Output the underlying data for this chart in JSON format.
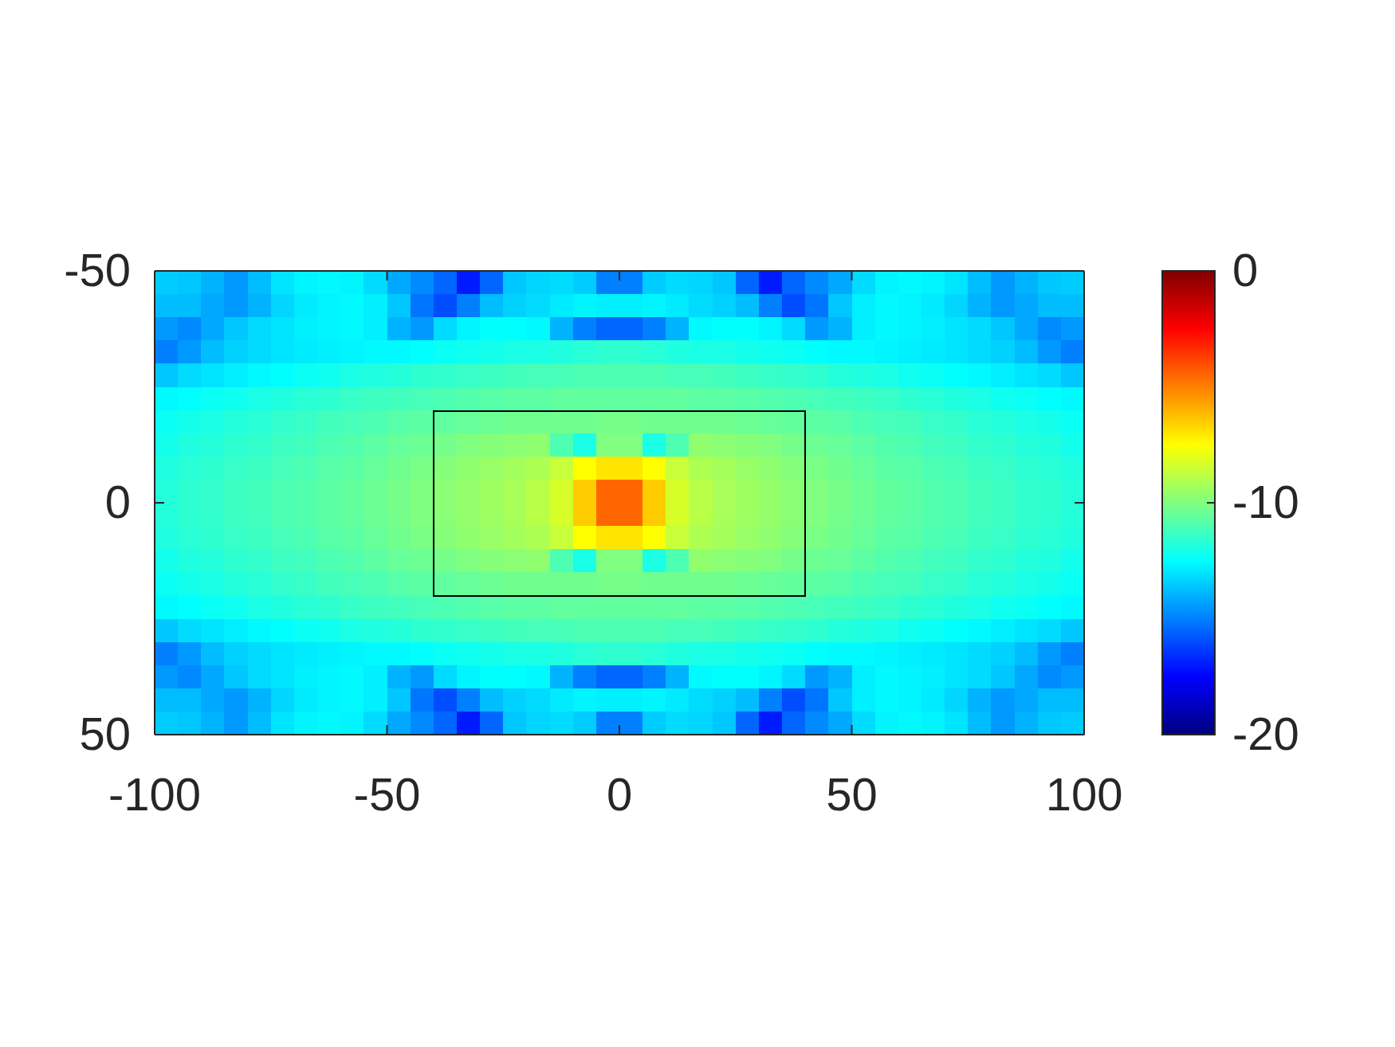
{
  "chart_data": {
    "type": "heatmap",
    "xlim": [
      -100,
      100
    ],
    "xticks": [
      -100,
      -50,
      0,
      50,
      100
    ],
    "ylim": [
      50,
      -50
    ],
    "yticks": [
      -50,
      0,
      50
    ],
    "clim": [
      -20,
      0
    ],
    "cticks": [
      -20,
      -10,
      0
    ],
    "cells": [
      [
        -13.5,
        -13.6,
        -14,
        -14.5,
        -13.8,
        -13,
        -12.7,
        -12.6,
        -12.7,
        -13.2,
        -14.2,
        -14.8,
        -15.5,
        -17,
        -15.5,
        -13.6,
        -13.3,
        -13.2,
        -13.5,
        -15,
        -15,
        -13.5,
        -13.2,
        -13.3,
        -13.6,
        -15.5,
        -17,
        -15.5,
        -14.8,
        -14.2,
        -13.2,
        -12.7,
        -12.6,
        -12.7,
        -13,
        -13.8,
        -14.5,
        -14,
        -13.6,
        -13.5
      ],
      [
        -13.8,
        -13.8,
        -14.2,
        -14.5,
        -14,
        -13.3,
        -12.9,
        -12.7,
        -12.6,
        -12.8,
        -13.6,
        -15.2,
        -16,
        -15,
        -13.8,
        -13.4,
        -13.2,
        -12.9,
        -12.7,
        -12.8,
        -12.8,
        -12.7,
        -12.9,
        -13.2,
        -13.4,
        -13.8,
        -15,
        -16,
        -15.2,
        -13.6,
        -12.8,
        -12.6,
        -12.7,
        -12.9,
        -13.3,
        -14,
        -14.5,
        -14.2,
        -13.8,
        -13.8
      ],
      [
        -14.5,
        -14.8,
        -14.2,
        -13.6,
        -13.2,
        -13,
        -12.8,
        -12.7,
        -12.6,
        -12.8,
        -14,
        -14.5,
        -13.2,
        -12.7,
        -12.5,
        -12.5,
        -12.6,
        -14,
        -15,
        -15.5,
        -15.5,
        -15,
        -14,
        -12.6,
        -12.5,
        -12.5,
        -12.7,
        -13.2,
        -14.5,
        -14,
        -12.8,
        -12.6,
        -12.7,
        -12.8,
        -13,
        -13.2,
        -13.6,
        -14.2,
        -14.8,
        -14.5
      ],
      [
        -15,
        -14.5,
        -13.8,
        -13.4,
        -13.2,
        -13,
        -12.9,
        -12.8,
        -12.7,
        -12.6,
        -12.6,
        -12.5,
        -12.3,
        -12.2,
        -12.1,
        -12,
        -12,
        -11.9,
        -11.7,
        -11.6,
        -11.6,
        -11.7,
        -11.9,
        -12,
        -12,
        -12.1,
        -12.2,
        -12.3,
        -12.5,
        -12.6,
        -12.6,
        -12.7,
        -12.8,
        -12.9,
        -13,
        -13.2,
        -13.4,
        -13.8,
        -14.5,
        -15
      ],
      [
        -13.6,
        -13.2,
        -13,
        -12.8,
        -12.6,
        -12.5,
        -12.3,
        -12.2,
        -12,
        -11.9,
        -11.8,
        -11.6,
        -11.5,
        -11.4,
        -11.3,
        -11.2,
        -11.1,
        -11.1,
        -11,
        -11,
        -11,
        -11,
        -11.1,
        -11.1,
        -11.2,
        -11.3,
        -11.4,
        -11.5,
        -11.6,
        -11.8,
        -11.9,
        -12,
        -12.2,
        -12.3,
        -12.5,
        -12.6,
        -12.8,
        -13,
        -13.2,
        -13.6
      ],
      [
        -12.6,
        -12.5,
        -12.3,
        -12.2,
        -12,
        -11.9,
        -11.7,
        -11.6,
        -11.4,
        -11.3,
        -11.2,
        -11.1,
        -11,
        -10.9,
        -10.8,
        -10.7,
        -10.7,
        -10.6,
        -10.6,
        -10.6,
        -10.6,
        -10.6,
        -10.6,
        -10.7,
        -10.7,
        -10.8,
        -10.9,
        -11,
        -11.1,
        -11.2,
        -11.3,
        -11.4,
        -11.6,
        -11.7,
        -11.9,
        -12,
        -12.2,
        -12.3,
        -12.5,
        -12.6
      ],
      [
        -12.3,
        -12.1,
        -12,
        -11.8,
        -11.7,
        -11.5,
        -11.4,
        -11.2,
        -11.1,
        -11,
        -10.8,
        -10.7,
        -10.6,
        -10.5,
        -10.4,
        -10.3,
        -10.3,
        -10.3,
        -10.3,
        -10.2,
        -10.2,
        -10.3,
        -10.3,
        -10.3,
        -10.3,
        -10.4,
        -10.5,
        -10.6,
        -10.7,
        -10.8,
        -11,
        -11.1,
        -11.2,
        -11.4,
        -11.5,
        -11.7,
        -11.8,
        -12,
        -12.1,
        -12.3
      ],
      [
        -12.1,
        -11.9,
        -11.8,
        -11.6,
        -11.5,
        -11.3,
        -11.2,
        -11,
        -10.9,
        -10.7,
        -10.5,
        -10.4,
        -10.2,
        -10,
        -9.9,
        -9.8,
        -9.7,
        -11,
        -12,
        -10,
        -10,
        -12,
        -11,
        -9.7,
        -9.8,
        -9.9,
        -10,
        -10.2,
        -10.4,
        -10.5,
        -10.7,
        -10.9,
        -11,
        -11.2,
        -11.3,
        -11.5,
        -11.6,
        -11.8,
        -11.9,
        -12.1
      ],
      [
        -11.9,
        -11.7,
        -11.6,
        -11.4,
        -11.3,
        -11.1,
        -11,
        -10.8,
        -10.7,
        -10.5,
        -10.3,
        -10.1,
        -9.9,
        -9.7,
        -9.5,
        -9.3,
        -9.1,
        -8.6,
        -7.5,
        -7,
        -7,
        -7.5,
        -8.6,
        -9.1,
        -9.3,
        -9.5,
        -9.7,
        -9.9,
        -10.1,
        -10.3,
        -10.5,
        -10.7,
        -10.8,
        -11,
        -11.1,
        -11.3,
        -11.4,
        -11.6,
        -11.7,
        -11.9
      ],
      [
        -11.8,
        -11.6,
        -11.5,
        -11.3,
        -11.2,
        -11,
        -10.9,
        -10.7,
        -10.6,
        -10.4,
        -10.2,
        -10,
        -9.8,
        -9.6,
        -9.4,
        -9.2,
        -8.9,
        -8.3,
        -6.5,
        -4.5,
        -4.5,
        -6.5,
        -8.3,
        -8.9,
        -9.2,
        -9.4,
        -9.6,
        -9.8,
        -10,
        -10.2,
        -10.4,
        -10.6,
        -10.7,
        -10.9,
        -11,
        -11.2,
        -11.3,
        -11.5,
        -11.6,
        -11.8
      ],
      [
        -11.8,
        -11.6,
        -11.5,
        -11.3,
        -11.2,
        -11,
        -10.9,
        -10.7,
        -10.6,
        -10.4,
        -10.2,
        -10,
        -9.8,
        -9.6,
        -9.4,
        -9.2,
        -8.9,
        -8.3,
        -6.5,
        -4.5,
        -4.5,
        -6.5,
        -8.3,
        -8.9,
        -9.2,
        -9.4,
        -9.6,
        -9.8,
        -10,
        -10.2,
        -10.4,
        -10.6,
        -10.7,
        -10.9,
        -11,
        -11.2,
        -11.3,
        -11.5,
        -11.6,
        -11.8
      ],
      [
        -11.9,
        -11.7,
        -11.6,
        -11.4,
        -11.3,
        -11.1,
        -11,
        -10.8,
        -10.7,
        -10.5,
        -10.3,
        -10.1,
        -9.9,
        -9.7,
        -9.5,
        -9.3,
        -9.1,
        -8.6,
        -7.5,
        -7,
        -7,
        -7.5,
        -8.6,
        -9.1,
        -9.3,
        -9.5,
        -9.7,
        -9.9,
        -10.1,
        -10.3,
        -10.5,
        -10.7,
        -10.8,
        -11,
        -11.1,
        -11.3,
        -11.4,
        -11.6,
        -11.7,
        -11.9
      ],
      [
        -12.1,
        -11.9,
        -11.8,
        -11.6,
        -11.5,
        -11.3,
        -11.2,
        -11,
        -10.9,
        -10.7,
        -10.5,
        -10.4,
        -10.2,
        -10,
        -9.9,
        -9.8,
        -9.7,
        -11,
        -12,
        -10,
        -10,
        -12,
        -11,
        -9.7,
        -9.8,
        -9.9,
        -10,
        -10.2,
        -10.4,
        -10.5,
        -10.7,
        -10.9,
        -11,
        -11.2,
        -11.3,
        -11.5,
        -11.6,
        -11.8,
        -11.9,
        -12.1
      ],
      [
        -12.3,
        -12.1,
        -12,
        -11.8,
        -11.7,
        -11.5,
        -11.4,
        -11.2,
        -11.1,
        -11,
        -10.8,
        -10.7,
        -10.6,
        -10.5,
        -10.4,
        -10.3,
        -10.3,
        -10.3,
        -10.3,
        -10.2,
        -10.2,
        -10.3,
        -10.3,
        -10.3,
        -10.3,
        -10.4,
        -10.5,
        -10.6,
        -10.7,
        -10.8,
        -11,
        -11.1,
        -11.2,
        -11.4,
        -11.5,
        -11.7,
        -11.8,
        -12,
        -12.1,
        -12.3
      ],
      [
        -12.6,
        -12.5,
        -12.3,
        -12.2,
        -12,
        -11.9,
        -11.7,
        -11.6,
        -11.4,
        -11.3,
        -11.2,
        -11.1,
        -11,
        -10.9,
        -10.8,
        -10.7,
        -10.7,
        -10.6,
        -10.6,
        -10.6,
        -10.6,
        -10.6,
        -10.6,
        -10.7,
        -10.7,
        -10.8,
        -10.9,
        -11,
        -11.1,
        -11.2,
        -11.3,
        -11.4,
        -11.6,
        -11.7,
        -11.9,
        -12,
        -12.2,
        -12.3,
        -12.5,
        -12.6
      ],
      [
        -13.6,
        -13.2,
        -13,
        -12.8,
        -12.6,
        -12.5,
        -12.3,
        -12.2,
        -12,
        -11.9,
        -11.8,
        -11.6,
        -11.5,
        -11.4,
        -11.3,
        -11.2,
        -11.1,
        -11.1,
        -11,
        -11,
        -11,
        -11,
        -11.1,
        -11.1,
        -11.2,
        -11.3,
        -11.4,
        -11.5,
        -11.6,
        -11.8,
        -11.9,
        -12,
        -12.2,
        -12.3,
        -12.5,
        -12.6,
        -12.8,
        -13,
        -13.2,
        -13.6
      ],
      [
        -15,
        -14.5,
        -13.8,
        -13.4,
        -13.2,
        -13,
        -12.9,
        -12.8,
        -12.7,
        -12.6,
        -12.6,
        -12.5,
        -12.3,
        -12.2,
        -12.1,
        -12,
        -12,
        -11.9,
        -11.7,
        -11.6,
        -11.6,
        -11.7,
        -11.9,
        -12,
        -12,
        -12.1,
        -12.2,
        -12.3,
        -12.5,
        -12.6,
        -12.6,
        -12.7,
        -12.8,
        -12.9,
        -13,
        -13.2,
        -13.4,
        -13.8,
        -14.5,
        -15
      ],
      [
        -14.5,
        -14.8,
        -14.2,
        -13.6,
        -13.2,
        -13,
        -12.8,
        -12.7,
        -12.6,
        -12.8,
        -14,
        -14.5,
        -13.2,
        -12.7,
        -12.5,
        -12.5,
        -12.6,
        -14,
        -15,
        -15.5,
        -15.5,
        -15,
        -14,
        -12.6,
        -12.5,
        -12.5,
        -12.7,
        -13.2,
        -14.5,
        -14,
        -12.8,
        -12.6,
        -12.7,
        -12.8,
        -13,
        -13.2,
        -13.6,
        -14.2,
        -14.8,
        -14.5
      ],
      [
        -13.8,
        -13.8,
        -14.2,
        -14.5,
        -14,
        -13.3,
        -12.9,
        -12.7,
        -12.6,
        -12.8,
        -13.6,
        -15.2,
        -16,
        -15,
        -13.8,
        -13.4,
        -13.2,
        -12.9,
        -12.7,
        -12.8,
        -12.8,
        -12.7,
        -12.9,
        -13.2,
        -13.4,
        -13.8,
        -15,
        -16,
        -15.2,
        -13.6,
        -12.8,
        -12.6,
        -12.7,
        -12.9,
        -13.3,
        -14,
        -14.5,
        -14.2,
        -13.8,
        -13.8
      ],
      [
        -13.5,
        -13.6,
        -14,
        -14.5,
        -13.8,
        -13,
        -12.7,
        -12.6,
        -12.7,
        -13.2,
        -14.2,
        -14.8,
        -15.5,
        -17,
        -15.5,
        -13.6,
        -13.3,
        -13.2,
        -13.5,
        -15,
        -15,
        -13.5,
        -13.2,
        -13.3,
        -13.6,
        -15.5,
        -17,
        -15.5,
        -14.8,
        -14.2,
        -13.2,
        -12.7,
        -12.6,
        -12.7,
        -13,
        -13.8,
        -14.5,
        -14,
        -13.6,
        -13.5
      ]
    ]
  }
}
